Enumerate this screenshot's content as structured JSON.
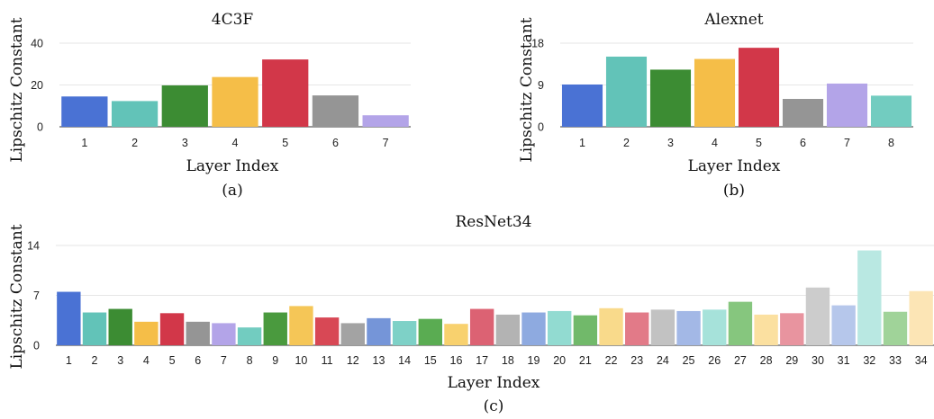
{
  "chart_data": [
    {
      "type": "bar",
      "title": "4C3F",
      "xlabel": "Layer Index",
      "ylabel": "Lipschitz Constant",
      "caption": "(a)",
      "ylim": [
        0,
        40
      ],
      "yticks": [
        "0",
        "20",
        "40"
      ],
      "grid": true,
      "categories": [
        "1",
        "2",
        "3",
        "4",
        "5",
        "6",
        "7"
      ],
      "values": [
        14.5,
        12.3,
        19.8,
        23.8,
        32.2,
        15.0,
        5.5
      ],
      "colors": [
        "#4a72d4",
        "#62c3b8",
        "#3c8c33",
        "#f5be48",
        "#d23749",
        "#959595",
        "#b3a4e8"
      ]
    },
    {
      "type": "bar",
      "title": "Alexnet",
      "xlabel": "Layer Index",
      "ylabel": "Lipschitz Constant",
      "caption": "(b)",
      "ylim": [
        0,
        18
      ],
      "yticks": [
        "0",
        "9",
        "18"
      ],
      "grid": true,
      "categories": [
        "1",
        "2",
        "3",
        "4",
        "5",
        "6",
        "7",
        "8"
      ],
      "values": [
        9.1,
        15.1,
        12.3,
        14.6,
        17.0,
        6.0,
        9.3,
        6.7
      ],
      "colors": [
        "#4a72d4",
        "#62c3b8",
        "#3c8c33",
        "#f5be48",
        "#d23749",
        "#959595",
        "#b3a4e8",
        "#72ccc0"
      ]
    },
    {
      "type": "bar",
      "title": "ResNet34",
      "xlabel": "Layer Index",
      "ylabel": "Lipschitz Constant",
      "caption": "(c)",
      "ylim": [
        0,
        14
      ],
      "yticks": [
        "0",
        "7",
        "14"
      ],
      "grid": true,
      "categories": [
        "1",
        "2",
        "3",
        "4",
        "5",
        "6",
        "7",
        "8",
        "9",
        "10",
        "11",
        "12",
        "13",
        "14",
        "15",
        "16",
        "17",
        "18",
        "19",
        "20",
        "21",
        "22",
        "23",
        "24",
        "25",
        "26",
        "27",
        "28",
        "29",
        "30",
        "31",
        "32",
        "33",
        "34"
      ],
      "values": [
        7.5,
        4.6,
        5.1,
        3.3,
        4.5,
        3.3,
        3.1,
        2.5,
        4.6,
        5.5,
        3.9,
        3.1,
        3.8,
        3.4,
        3.7,
        3.0,
        5.1,
        4.3,
        4.6,
        4.8,
        4.2,
        5.2,
        4.6,
        5.0,
        4.8,
        5.0,
        6.1,
        4.3,
        4.5,
        8.1,
        5.6,
        13.3,
        4.7,
        7.6
      ],
      "colors": [
        "#4a72d4",
        "#62c3b8",
        "#3c8c33",
        "#f5be48",
        "#d23749",
        "#959595",
        "#b3a4e8",
        "#72ccc0",
        "#4a9a3e",
        "#f5c657",
        "#d84855",
        "#a3a3a3",
        "#7595d8",
        "#7ed1c7",
        "#5aac52",
        "#f8d16e",
        "#dc6273",
        "#b3b3b3",
        "#8eaae0",
        "#92dbd1",
        "#71b96a",
        "#f9da8b",
        "#e27a88",
        "#c2c2c2",
        "#a3b8e6",
        "#a6e2da",
        "#86c67e",
        "#fbe0a0",
        "#e8949f",
        "#cccccc",
        "#b6c7eb",
        "#b9e8e2",
        "#a0d399",
        "#fce5b5"
      ]
    }
  ]
}
